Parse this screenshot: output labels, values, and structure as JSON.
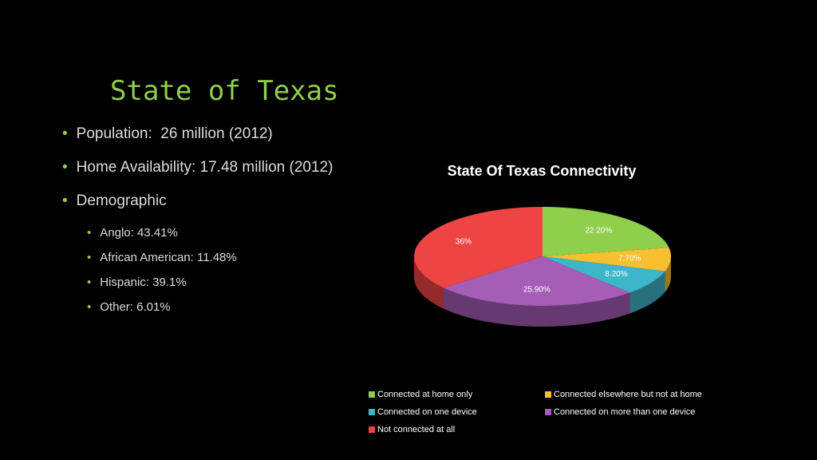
{
  "title": "State of Texas",
  "bullets": [
    {
      "text": "Population:  26 million (2012)"
    },
    {
      "text": "Home Availability: 17.48 million (2012)"
    },
    {
      "text": "Demographic",
      "sub": [
        "Anglo: 43.41%",
        "African American: 11.48%",
        "Hispanic: 39.1%",
        "Other: 6.01%"
      ]
    }
  ],
  "chart_data": {
    "type": "pie",
    "title": "State Of Texas Connectivity",
    "categories": [
      "Connected at home only",
      "Connected elsewhere but not at home",
      "Connected on one device",
      "Connected on more than one device",
      "Not connected at all"
    ],
    "values": [
      22.2,
      7.7,
      8.2,
      25.9,
      36
    ],
    "value_labels": [
      "22.20%",
      "7.70%",
      "8.20%",
      "25.90%",
      "36%"
    ],
    "colors": [
      "#8fcf4c",
      "#f7c031",
      "#3db6c9",
      "#a55db6",
      "#ee4444"
    ]
  }
}
